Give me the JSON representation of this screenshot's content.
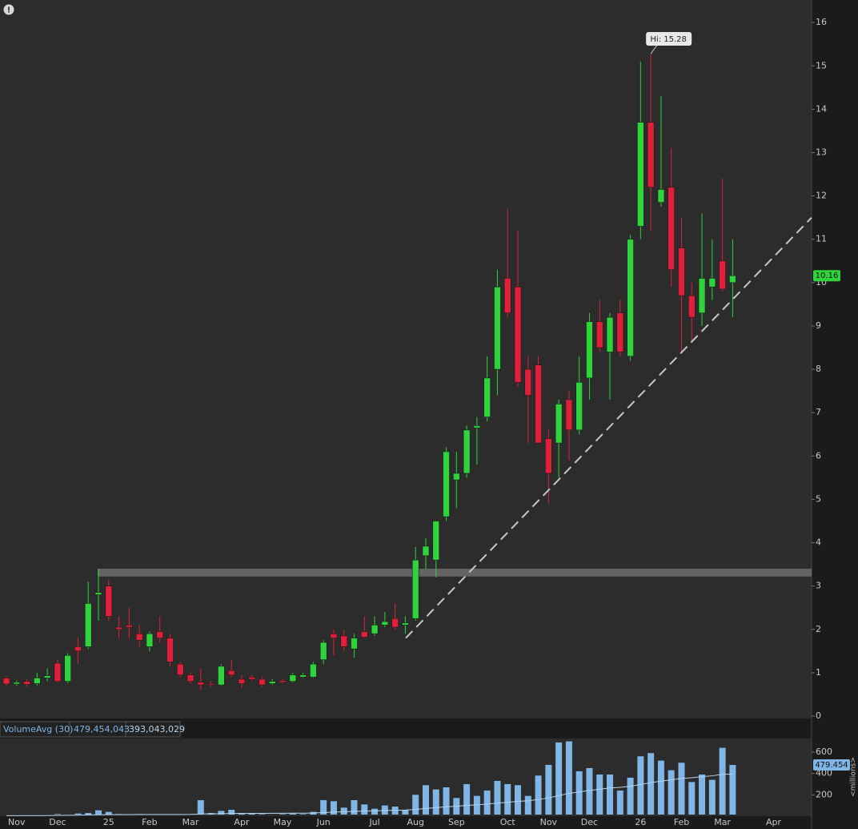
{
  "chart_data": {
    "type": "candlestick",
    "categories": [
      null,
      "Nov",
      null,
      null,
      null,
      "Dec",
      null,
      null,
      null,
      null,
      "25",
      null,
      null,
      null,
      "Feb",
      null,
      null,
      null,
      "Mar",
      null,
      null,
      null,
      null,
      "Apr",
      null,
      null,
      null,
      "May",
      null,
      null,
      null,
      "Jun",
      null,
      null,
      null,
      null,
      "Jul",
      null,
      null,
      null,
      "Aug",
      null,
      null,
      null,
      "Sep",
      null,
      null,
      null,
      null,
      "Oct",
      null,
      null,
      null,
      "Nov",
      null,
      null,
      null,
      "Dec",
      null,
      null,
      null,
      null,
      "26",
      null,
      null,
      null,
      "Feb",
      null,
      null,
      null,
      "Mar",
      null,
      null,
      null,
      null,
      "Apr",
      null,
      null,
      null
    ],
    "open": [
      0.88,
      0.74,
      0.8,
      0.75,
      0.88,
      1.22,
      0.8,
      1.6,
      1.6,
      2.8,
      3.0,
      2.05,
      2.1,
      1.9,
      1.6,
      1.95,
      1.8,
      1.2,
      0.95,
      0.78,
      0.75,
      0.72,
      1.05,
      0.85,
      0.9,
      0.85,
      0.75,
      0.82,
      0.8,
      0.9,
      0.9,
      1.3,
      1.9,
      1.85,
      1.55,
      1.95,
      1.9,
      2.1,
      2.25,
      2.1,
      2.25,
      3.7,
      3.6,
      4.6,
      5.45,
      5.6,
      6.65,
      6.9,
      8.0,
      10.1,
      9.9,
      8.0,
      8.1,
      6.4,
      6.3,
      7.3,
      6.6,
      7.8,
      9.1,
      8.4,
      9.3,
      8.3,
      11.3,
      13.7,
      11.85,
      12.2,
      10.8,
      9.7,
      9.3,
      9.9,
      10.5,
      10.0,
      null,
      null,
      null,
      null,
      null,
      null,
      null
    ],
    "high": [
      0.92,
      0.82,
      0.85,
      1.0,
      1.1,
      1.3,
      1.45,
      1.8,
      3.1,
      3.4,
      3.15,
      2.3,
      2.5,
      2.1,
      1.95,
      2.3,
      1.9,
      1.25,
      1.0,
      1.1,
      0.8,
      1.2,
      1.3,
      0.95,
      0.95,
      0.9,
      0.85,
      0.85,
      1.0,
      1.0,
      1.25,
      1.75,
      2.0,
      2.0,
      1.9,
      2.3,
      2.3,
      2.4,
      2.6,
      2.3,
      3.9,
      4.1,
      4.5,
      6.2,
      6.1,
      6.7,
      6.9,
      8.3,
      10.3,
      11.7,
      11.2,
      8.3,
      8.3,
      6.6,
      7.3,
      7.5,
      8.3,
      9.3,
      9.6,
      9.3,
      9.6,
      11.1,
      15.1,
      15.28,
      14.3,
      13.1,
      11.5,
      10.0,
      11.6,
      11.0,
      12.4,
      11.0,
      null,
      null,
      null,
      null,
      null,
      null,
      null
    ],
    "low": [
      0.7,
      0.7,
      0.68,
      0.7,
      0.8,
      0.78,
      0.76,
      1.2,
      1.55,
      2.2,
      2.2,
      1.8,
      1.8,
      1.6,
      1.5,
      1.7,
      1.15,
      0.9,
      0.75,
      0.6,
      0.68,
      0.7,
      0.9,
      0.65,
      0.82,
      0.68,
      0.72,
      0.76,
      0.78,
      0.88,
      0.88,
      1.2,
      1.4,
      1.5,
      1.35,
      1.8,
      1.85,
      2.05,
      2.0,
      1.9,
      2.2,
      3.4,
      3.2,
      4.5,
      4.8,
      5.5,
      5.8,
      6.8,
      7.4,
      9.2,
      7.6,
      6.3,
      6.3,
      4.9,
      5.5,
      5.9,
      6.5,
      7.3,
      8.4,
      7.3,
      8.3,
      8.2,
      11.0,
      11.2,
      11.75,
      9.9,
      8.4,
      8.6,
      9.0,
      9.6,
      9.8,
      9.2,
      null,
      null,
      null,
      null,
      null,
      null,
      null
    ],
    "close": [
      0.74,
      0.78,
      0.73,
      0.88,
      0.93,
      0.8,
      1.4,
      1.5,
      2.6,
      2.85,
      2.3,
      2.0,
      2.05,
      1.75,
      1.9,
      1.8,
      1.25,
      0.95,
      0.8,
      0.72,
      0.72,
      1.15,
      0.95,
      0.75,
      0.85,
      0.72,
      0.8,
      0.78,
      0.95,
      0.95,
      1.2,
      1.7,
      1.8,
      1.6,
      1.8,
      1.82,
      2.1,
      2.18,
      2.05,
      2.15,
      3.6,
      3.92,
      4.5,
      6.1,
      5.6,
      6.6,
      6.7,
      7.8,
      9.9,
      9.3,
      7.7,
      7.4,
      6.3,
      5.6,
      7.2,
      6.6,
      7.7,
      9.1,
      8.5,
      9.2,
      8.4,
      11.0,
      13.7,
      12.2,
      12.15,
      10.3,
      9.7,
      9.2,
      10.1,
      10.1,
      9.85,
      10.16,
      null,
      null,
      null,
      null,
      null,
      null,
      null
    ],
    "color_up": "#2fd33b",
    "color_down": "#e0203a",
    "ylim": [
      -0.055,
      16.52
    ],
    "yticks": [
      0,
      1,
      2,
      3,
      4,
      5,
      6,
      7,
      8,
      9,
      10,
      11,
      12,
      13,
      14,
      15,
      16
    ],
    "last_price": 10.16,
    "hi_label": "Hi: 15.28",
    "trendline": {
      "start": 1.8,
      "end": 11.5,
      "color": "#c8c8c8"
    },
    "zone": {
      "low": 3.22,
      "high": 3.4,
      "color": "#6e6e6e"
    },
    "volume": {
      "name": "VolumeAvg (30)",
      "stats": [
        "479,454,043",
        "393,043,029"
      ],
      "values": [
        3,
        3,
        3,
        3,
        12,
        20,
        15,
        25,
        30,
        55,
        40,
        20,
        15,
        20,
        10,
        10,
        10,
        8,
        12,
        150,
        30,
        50,
        60,
        30,
        25,
        20,
        15,
        20,
        25,
        20,
        40,
        150,
        140,
        80,
        150,
        110,
        70,
        100,
        90,
        60,
        200,
        290,
        250,
        270,
        170,
        300,
        190,
        240,
        330,
        300,
        290,
        190,
        380,
        480,
        690,
        700,
        420,
        450,
        390,
        390,
        240,
        360,
        560,
        590,
        520,
        430,
        500,
        320,
        390,
        340,
        640,
        479.454,
        null,
        null,
        null,
        null,
        null,
        null,
        null
      ],
      "avg": [
        5,
        5,
        5,
        5,
        6,
        7,
        8,
        9,
        11,
        13,
        14,
        15,
        15,
        16,
        16,
        16,
        16,
        16,
        17,
        21,
        22,
        23,
        25,
        25,
        26,
        26,
        27,
        27,
        28,
        28,
        30,
        34,
        38,
        41,
        45,
        48,
        50,
        53,
        55,
        57,
        63,
        72,
        80,
        88,
        93,
        101,
        106,
        113,
        122,
        130,
        139,
        144,
        156,
        171,
        192,
        214,
        227,
        241,
        252,
        264,
        270,
        280,
        297,
        314,
        328,
        340,
        353,
        360,
        370,
        378,
        392,
        393.043,
        null,
        null,
        null,
        null,
        null,
        null,
        null
      ],
      "color": "#7fb6e6",
      "avg_color": "#b8d4ee",
      "ylim": [
        0,
        727
      ],
      "yticks": [
        200,
        400,
        600
      ],
      "last": 479.454,
      "unit_label": "<millions>"
    }
  }
}
